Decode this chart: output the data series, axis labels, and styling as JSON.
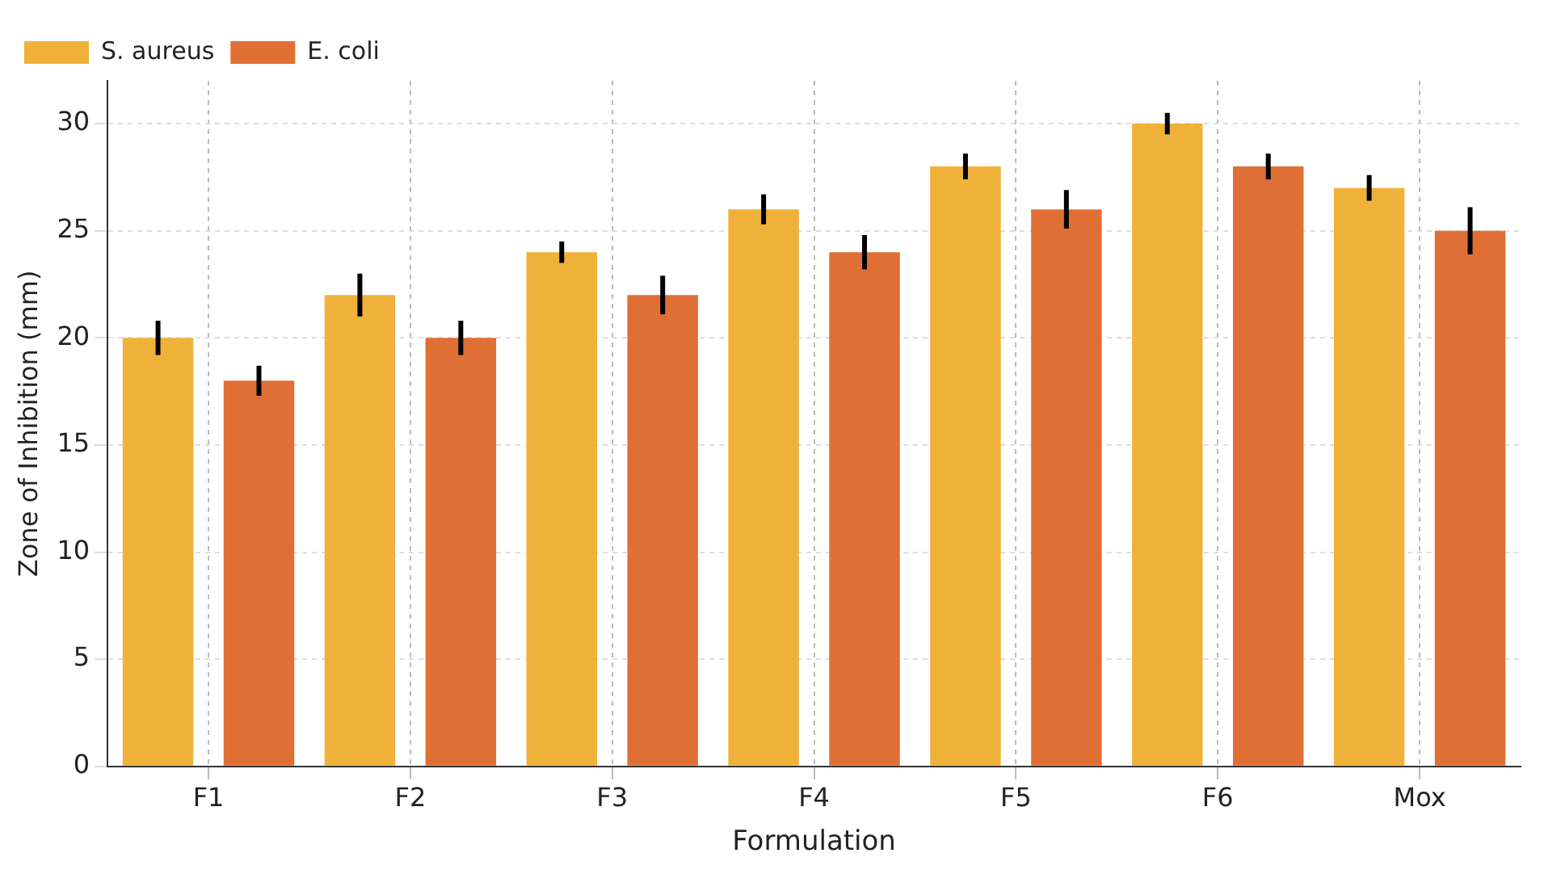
{
  "chart_data": {
    "type": "bar",
    "xlabel": "Formulation",
    "ylabel": "Zone of Inhibition (mm)",
    "categories": [
      "F1",
      "F2",
      "F3",
      "F4",
      "F5",
      "F6",
      "Mox"
    ],
    "series": [
      {
        "name": "S. aureus",
        "color": "#f0b13b",
        "values": [
          20,
          22,
          24,
          26,
          28,
          30,
          27
        ],
        "errors": [
          0.8,
          1.0,
          0.5,
          0.7,
          0.6,
          0.5,
          0.6
        ]
      },
      {
        "name": "E. coli",
        "color": "#e06f36",
        "values": [
          18,
          20,
          22,
          24,
          26,
          28,
          25
        ],
        "errors": [
          0.7,
          0.8,
          0.9,
          0.8,
          0.9,
          0.6,
          1.1
        ]
      }
    ],
    "ylim": [
      0,
      32
    ],
    "yticks": [
      0,
      5,
      10,
      15,
      20,
      25,
      30
    ],
    "grid": true,
    "legend": "top left"
  }
}
